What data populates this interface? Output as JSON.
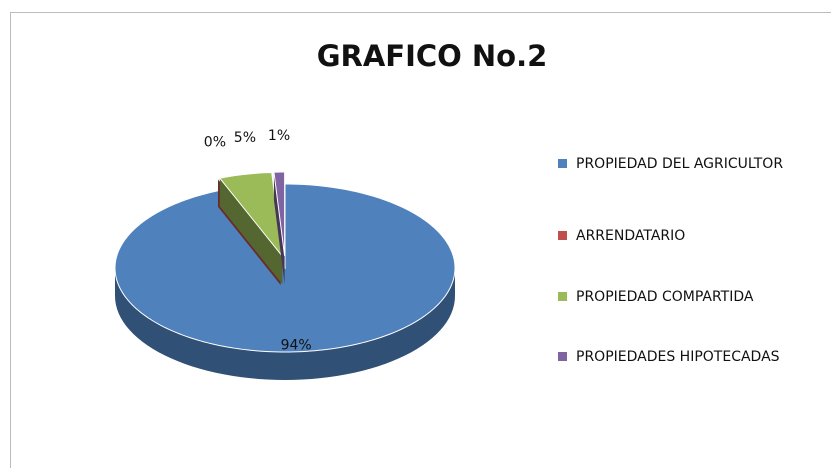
{
  "chart_data": {
    "type": "pie",
    "title": "GRAFICO No.2",
    "categories": [
      "PROPIEDAD DEL AGRICULTOR",
      "ARRENDATARIO",
      "PROPIEDAD COMPARTIDA",
      "PROPIEDADES HIPOTECADAS"
    ],
    "values": [
      94,
      0,
      5,
      1
    ],
    "value_labels": [
      "94%",
      "0%",
      "5%",
      "1%"
    ],
    "colors": [
      "#4f81bd",
      "#c0504d",
      "#9bbb59",
      "#8064a2"
    ],
    "legend": "right"
  }
}
